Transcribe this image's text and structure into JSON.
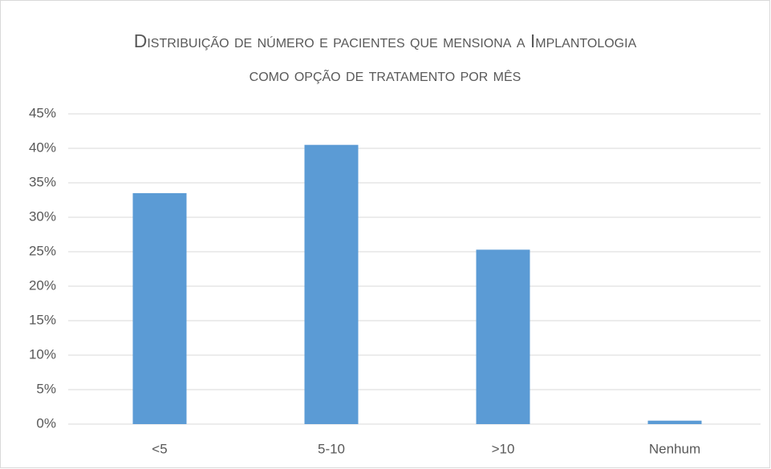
{
  "chart_data": {
    "type": "bar",
    "title": "Distribuição de número e pacientes que mensiona a Implantologia como opção de tratamento por mês",
    "categories": [
      "<5",
      "5-10",
      ">10",
      "Nenhum"
    ],
    "values": [
      33.5,
      40.5,
      25.3,
      0.5
    ],
    "color": "#5b9bd5",
    "ylim": [
      0,
      45
    ],
    "yticks": [
      {
        "value": 0,
        "label": "0%"
      },
      {
        "value": 5,
        "label": "5%"
      },
      {
        "value": 10,
        "label": "10%"
      },
      {
        "value": 15,
        "label": "15%"
      },
      {
        "value": 20,
        "label": "20%"
      },
      {
        "value": 25,
        "label": "25%"
      },
      {
        "value": 30,
        "label": "30%"
      },
      {
        "value": 35,
        "label": "35%"
      },
      {
        "value": 40,
        "label": "40%"
      },
      {
        "value": 45,
        "label": "45%"
      }
    ],
    "grid": true
  }
}
